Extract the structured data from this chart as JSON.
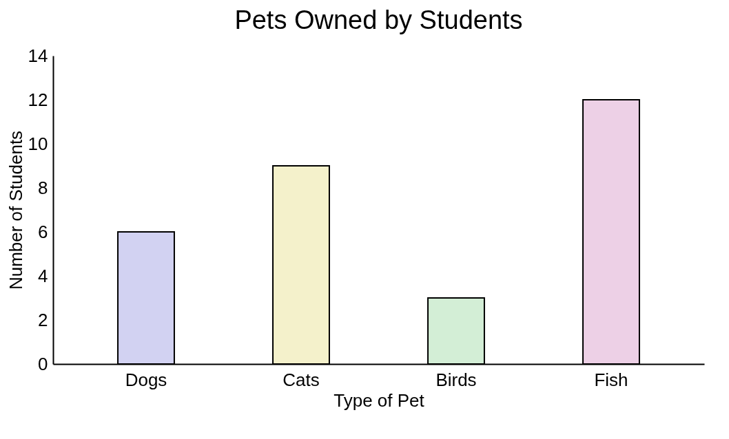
{
  "chart_data": {
    "type": "bar",
    "title": "Pets Owned by Students",
    "xlabel": "Type of Pet",
    "ylabel": "Number of Students",
    "categories": [
      "Dogs",
      "Cats",
      "Birds",
      "Fish"
    ],
    "values": [
      6,
      9,
      3,
      12
    ],
    "colors": [
      "#d2d2f2",
      "#f4f1cb",
      "#d3eed6",
      "#edd0e6"
    ],
    "ylim": [
      0,
      14
    ],
    "yticks": [
      0,
      2,
      4,
      6,
      8,
      10,
      12,
      14
    ],
    "grid": false
  }
}
